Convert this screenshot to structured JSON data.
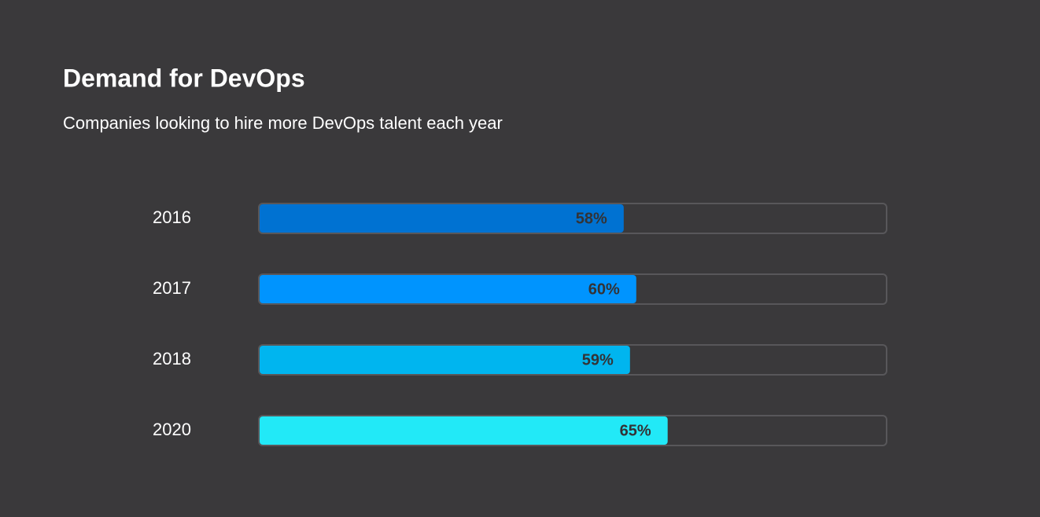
{
  "chart_data": {
    "type": "bar",
    "orientation": "horizontal",
    "title": "Demand for DevOps",
    "subtitle": "Companies looking to hire more DevOps talent each year",
    "categories": [
      "2016",
      "2017",
      "2018",
      "2020"
    ],
    "values": [
      58,
      60,
      59,
      65
    ],
    "value_labels": [
      "58%",
      "60%",
      "59%",
      "65%"
    ],
    "colors": [
      "#0072d2",
      "#0094fe",
      "#00b5ef",
      "#22e9f7"
    ],
    "xlim": [
      0,
      100
    ]
  }
}
